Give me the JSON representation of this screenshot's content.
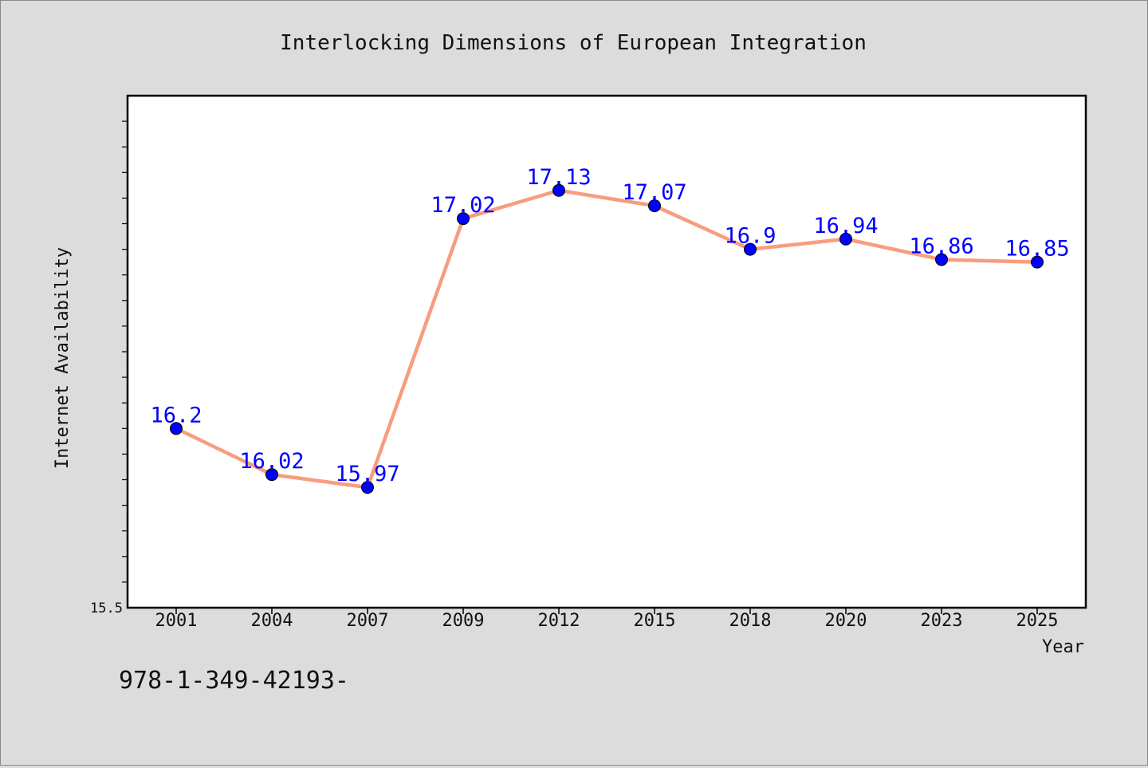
{
  "chart_data": {
    "type": "line",
    "title": "Interlocking Dimensions of European Integration",
    "xlabel": "Year",
    "ylabel": "Internet Availability",
    "categories": [
      "2001",
      "2004",
      "2007",
      "2009",
      "2012",
      "2015",
      "2018",
      "2020",
      "2023",
      "2025"
    ],
    "series": [
      {
        "values": [
          16.2,
          16.02,
          15.97,
          17.02,
          17.13,
          17.07,
          16.9,
          16.94,
          16.86,
          16.85
        ],
        "labels": [
          "16.2",
          "16.02",
          "15.97",
          "17.02",
          "17.13",
          "17.07",
          "16.9",
          "16.94",
          "16.86",
          "16.85"
        ],
        "line_color": "#f79d7f",
        "marker_color": "#0000ff"
      }
    ],
    "ylim": [
      15.5,
      17.5
    ],
    "y_tick_step": 0.1,
    "y_tick_labels": [
      "15.5"
    ],
    "grid": false,
    "legend": "none",
    "plot_background": "#ffffff",
    "page_background": "#dcdcdc"
  },
  "footer": {
    "isbn_text": "978-1-349-42193-"
  }
}
